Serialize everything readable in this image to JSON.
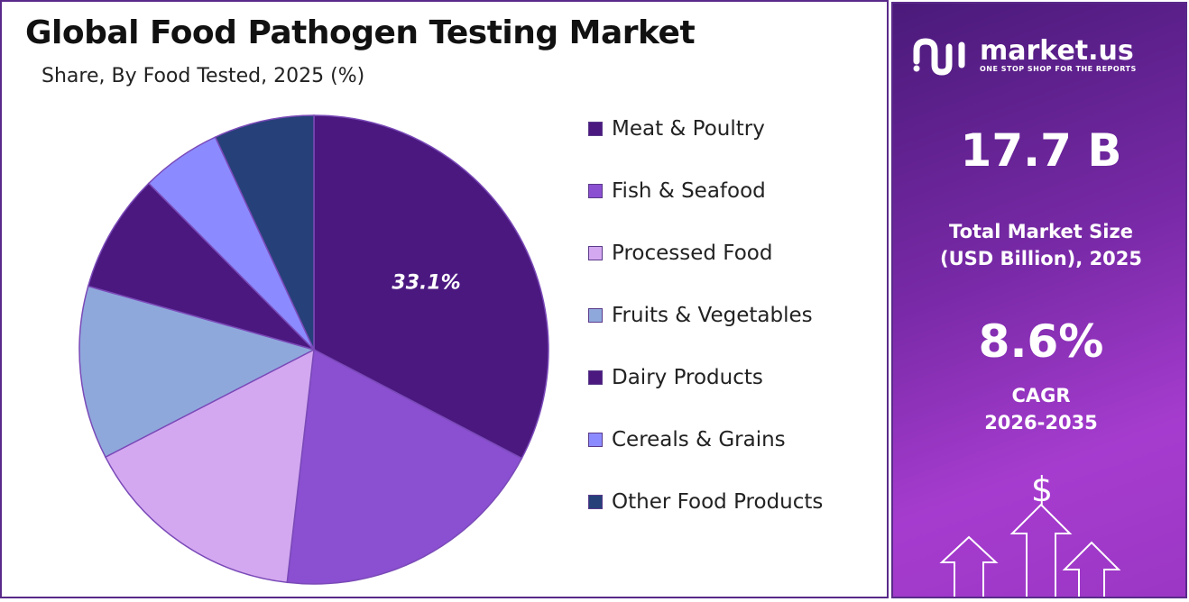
{
  "chart_data": {
    "type": "pie",
    "title": "Global Food Pathogen Testing Market",
    "subtitle": "Share, By Food Tested, 2025 (%)",
    "categories": [
      "Meat & Poultry",
      "Fish & Seafood",
      "Processed Food",
      "Fruits & Vegetables",
      "Dairy Products",
      "Cereals & Grains",
      "Other Food Products"
    ],
    "values": [
      33.1,
      19.4,
      15.8,
      12.1,
      8.3,
      5.6,
      7.0
    ],
    "colors": [
      "#4b1880",
      "#8b4fd1",
      "#d4a8f0",
      "#8fa8dc",
      "#4b1880",
      "#8b8bff",
      "#26407a"
    ],
    "data_labels": [
      "33.1%",
      "",
      "",
      "",
      "",
      "",
      ""
    ],
    "legend_position": "right"
  },
  "sidebar": {
    "brand_name": "market.us",
    "brand_tagline": "ONE STOP SHOP FOR THE REPORTS",
    "market_size_value": "17.7 B",
    "market_size_label_line1": "Total Market Size",
    "market_size_label_line2": "(USD Billion), 2025",
    "cagr_value": "8.6%",
    "cagr_label_line1": "CAGR",
    "cagr_label_line2": "2026-2035",
    "icon_names": [
      "market-us-logo-icon",
      "dollar-icon",
      "growth-arrows-icon"
    ]
  }
}
